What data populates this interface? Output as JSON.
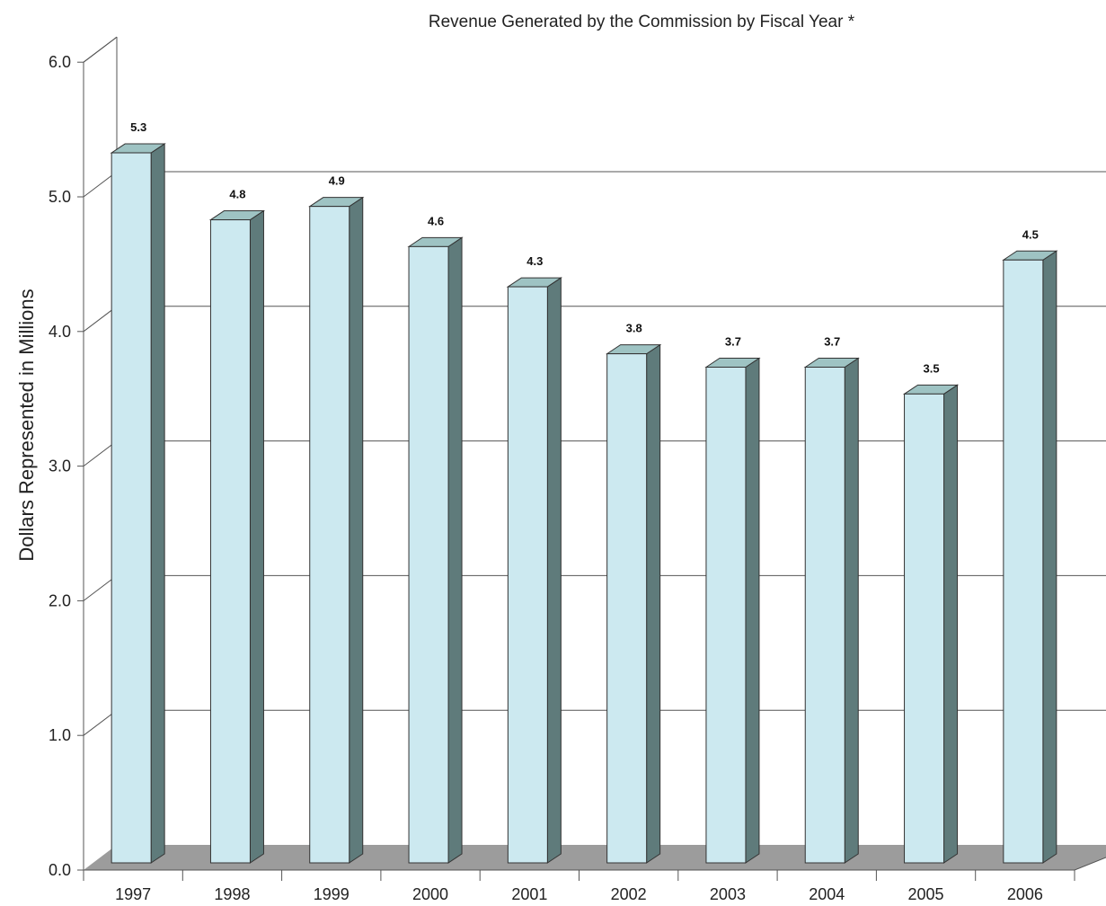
{
  "chart_data": {
    "type": "bar",
    "title": "Revenue Generated by the Commission by Fiscal Year *",
    "xlabel": "",
    "ylabel": "Dollars Represented in Millions",
    "categories": [
      "1997",
      "1998",
      "1999",
      "2000",
      "2001",
      "2002",
      "2003",
      "2004",
      "2005",
      "2006"
    ],
    "values": [
      5.3,
      4.8,
      4.9,
      4.6,
      4.3,
      3.8,
      3.7,
      3.7,
      3.5,
      4.5
    ],
    "value_labels": [
      "5.3",
      "4.8",
      "4.9",
      "4.6",
      "4.3",
      "3.8",
      "3.7",
      "3.7",
      "3.5",
      "4.5"
    ],
    "yticks": [
      "0.0",
      "1.0",
      "2.0",
      "3.0",
      "4.0",
      "5.0",
      "6.0"
    ],
    "ylim": [
      0,
      6
    ],
    "grid": true,
    "legend": "none",
    "style": "3d-bar",
    "colors": {
      "bar_front": "#cce9f0",
      "bar_side": "#5f7b7b",
      "bar_top": "#9ec3c3",
      "floor": "#9c9c9c",
      "grid": "#555555",
      "axis": "#555555"
    }
  }
}
